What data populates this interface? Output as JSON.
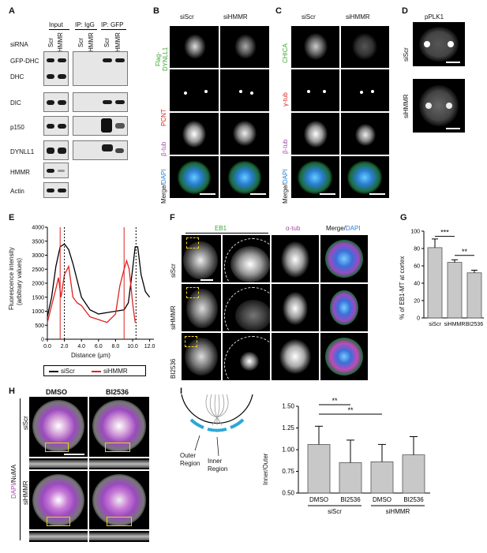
{
  "panels": {
    "a": "A",
    "b": "B",
    "c": "C",
    "d": "D",
    "e": "E",
    "f": "F",
    "g": "G",
    "h": "H",
    "i": "I"
  },
  "panelA": {
    "header_input": "Input",
    "header_igg": "IP: IgG",
    "header_gfp": "IP: GFP",
    "sirna_label": "siRNA",
    "lanes": [
      "Scr",
      "HMMR",
      "Scr",
      "HMMR",
      "Scr",
      "HMMR"
    ],
    "rows": [
      "GFP-DHC",
      "DHC",
      "DIC",
      "p150",
      "DYNLL1",
      "HMMR",
      "Actin"
    ]
  },
  "panelB": {
    "cols": [
      "siScr",
      "siHMMR"
    ],
    "row1a": "Flag-",
    "row1b": "DYNLL1",
    "row2": "PCNT",
    "row3": "β-tub",
    "row4a": "Merge/",
    "row4b": "DAPI"
  },
  "panelC": {
    "cols": [
      "siScr",
      "siHMMR"
    ],
    "row1": "CHICA",
    "row2": "γ-tub",
    "row3": "β-tub",
    "row4a": "Merge/",
    "row4b": "DAPI"
  },
  "panelD": {
    "title": "pPLK1",
    "rows": [
      "siScr",
      "siHMMR"
    ]
  },
  "panelE": {
    "ylabel1": "Fluorescence intensity",
    "ylabel2": "(arbitrary values)",
    "xlabel": "Distance (μm)",
    "yticks": [
      "0",
      "500",
      "1000",
      "1500",
      "2000",
      "2500",
      "3000",
      "3500",
      "4000"
    ],
    "xticks": [
      "0.0",
      "2.0",
      "4.0",
      "6.0",
      "8.0",
      "10.0",
      "12.0"
    ],
    "legend": [
      "siScr",
      "siHMMR"
    ]
  },
  "panelF": {
    "headers": [
      "EB1",
      "α-tub",
      "Merge/",
      "DAPI"
    ],
    "rows": [
      "siScr",
      "siHMMR",
      "BI2536"
    ]
  },
  "panelH": {
    "cols": [
      "DMSO",
      "BI2536"
    ],
    "rows": [
      "siScr",
      "siHMMR"
    ],
    "side_a": "DAPI",
    "side_b": "/NuMA"
  },
  "panelI": {
    "outer": "Outer",
    "outer2": "Region",
    "inner": "Inner",
    "inner2": "Region",
    "ylabel": "Inner/Outer",
    "xticks": [
      "DMSO",
      "BI2536",
      "DMSO",
      "BI2536"
    ],
    "groups": [
      "siScr",
      "siHMMR"
    ],
    "sig": [
      "**",
      "**"
    ],
    "yticks": [
      "0.50",
      "0.75",
      "1.00",
      "1.25",
      "1.50"
    ]
  },
  "chart_data": [
    {
      "type": "line",
      "panel": "E",
      "xlabel": "Distance (μm)",
      "ylabel": "Fluorescence intensity (arbitrary values)",
      "xlim": [
        0,
        12.5
      ],
      "ylim": [
        0,
        4000
      ],
      "series": [
        {
          "name": "siScr",
          "color": "#000000",
          "x": [
            0,
            0.5,
            1,
            1.5,
            2,
            2.5,
            3,
            3.5,
            4,
            5,
            6,
            7,
            8,
            9,
            9.5,
            10,
            10.3,
            10.6,
            11,
            11.5,
            12
          ],
          "y": [
            800,
            1500,
            2600,
            3300,
            3400,
            3200,
            2700,
            2100,
            1500,
            1050,
            900,
            950,
            1000,
            1050,
            1300,
            2500,
            3300,
            3300,
            2300,
            1700,
            1500
          ]
        },
        {
          "name": "siHMMR",
          "color": "#e02020",
          "x": [
            0,
            0.5,
            1,
            1.3,
            1.6,
            2,
            2.5,
            3,
            3.5,
            4,
            5,
            6,
            7,
            8,
            8.5,
            9,
            9.3,
            9.6,
            10,
            10.3
          ],
          "y": [
            600,
            1200,
            1800,
            2200,
            1500,
            2300,
            2600,
            1500,
            1300,
            1200,
            800,
            700,
            600,
            900,
            1900,
            2500,
            2800,
            2500,
            1300,
            600
          ]
        }
      ],
      "vlines": [
        {
          "x": 1.5,
          "color": "#e02020"
        },
        {
          "x": 2.0,
          "color": "#000000"
        },
        {
          "x": 9.0,
          "color": "#e02020"
        },
        {
          "x": 10.4,
          "color": "#000000"
        }
      ]
    },
    {
      "type": "bar",
      "panel": "G",
      "ylabel": "% of EB1-MT at cortex",
      "categories": [
        "siScr",
        "siHMMR",
        "BI2536"
      ],
      "values": [
        81,
        64,
        52
      ],
      "errors": [
        10,
        3,
        3
      ],
      "ylim": [
        0,
        100
      ],
      "yticks": [
        "0",
        "20",
        "40",
        "60",
        "80",
        "100"
      ],
      "sig": [
        "***",
        "**"
      ]
    },
    {
      "type": "bar",
      "panel": "I",
      "ylabel": "Inner/Outer",
      "categories": [
        "DMSO",
        "BI2536",
        "DMSO",
        "BI2536"
      ],
      "groups": [
        "siScr",
        "siHMMR"
      ],
      "values": [
        1.06,
        0.85,
        0.86,
        0.94
      ],
      "errors": [
        0.21,
        0.26,
        0.2,
        0.21
      ],
      "ylim": [
        0.5,
        1.5
      ],
      "sig": [
        "**",
        "**"
      ]
    }
  ]
}
